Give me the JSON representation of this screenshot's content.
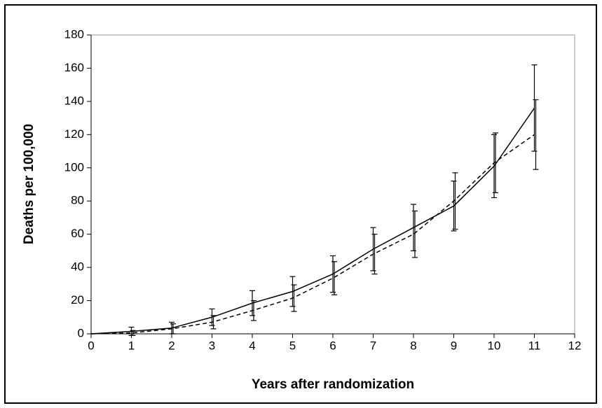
{
  "chart_data": {
    "type": "line",
    "x_label": "Years after randomization",
    "y_label": "Deaths per 100,000",
    "x": [
      0,
      1,
      2,
      3,
      4,
      5,
      6,
      7,
      8,
      9,
      10,
      11
    ],
    "series": [
      {
        "color": "#000000",
        "line_style": "solid",
        "values": [
          0,
          1.5,
          3.5,
          10,
          18.5,
          25.5,
          36,
          51,
          64,
          77,
          101,
          136
        ],
        "errors": [
          0,
          2.5,
          3.5,
          5,
          7.5,
          9,
          11,
          13,
          14,
          15,
          19,
          26
        ]
      },
      {
        "color": "#000000",
        "line_style": "dashed",
        "values": [
          0,
          0.5,
          3,
          7,
          14,
          21.5,
          33.5,
          48,
          60,
          80,
          103,
          120
        ],
        "errors": [
          0,
          1.5,
          3,
          4,
          6,
          8,
          10,
          12,
          14,
          17,
          18,
          21
        ]
      }
    ],
    "xlim": [
      0,
      12
    ],
    "xticks": [
      0,
      1,
      2,
      3,
      4,
      5,
      6,
      7,
      8,
      9,
      10,
      11,
      12
    ],
    "ylim": [
      0,
      180
    ],
    "yticks": [
      0,
      20,
      40,
      60,
      80,
      100,
      120,
      140,
      160,
      180
    ],
    "grid": false
  }
}
